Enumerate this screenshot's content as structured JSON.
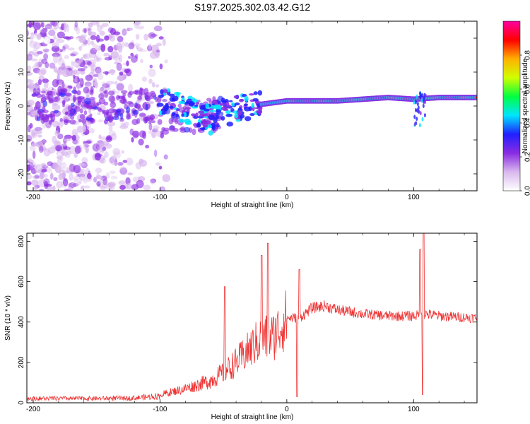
{
  "chart_data": [
    {
      "type": "heatmap",
      "title": "S197.2025.302.03.42.G12",
      "xlabel": "Height of straight line (km)",
      "ylabel": "Frequency (Hz)",
      "xlim": [
        -205,
        150
      ],
      "ylim": [
        -25,
        25
      ],
      "xticks": [
        -200,
        -100,
        0,
        100
      ],
      "xtick_labels": [
        "-200",
        "-100",
        "0",
        "100"
      ],
      "yticks": [
        -20,
        -10,
        0,
        10,
        20
      ],
      "ytick_labels": [
        "-20",
        "-10",
        "0",
        "10",
        "20"
      ],
      "colorbar": {
        "label": "Normalized spectral amplitude",
        "ticks": [
          0.0,
          0.2,
          0.4,
          0.6,
          0.8
        ],
        "tick_labels": [
          "0.0",
          "0.2",
          "0.4",
          "0.6",
          "0.8"
        ],
        "range": [
          0,
          1
        ],
        "colors": [
          "#ffffff",
          "#d9b8ee",
          "#8a2be2",
          "#2020ff",
          "#00e5ff",
          "#00ff40",
          "#d0ff00",
          "#ffb000",
          "#ff0000",
          "#ff00a0"
        ]
      },
      "ridge": {
        "description_points_x_km": [
          -60,
          -40,
          -20,
          0,
          20,
          40,
          60,
          80,
          100,
          120,
          150
        ],
        "frequency_hz": [
          -3,
          -1,
          0.5,
          1.5,
          1.5,
          1.5,
          2,
          2.5,
          2,
          2.5,
          2.5
        ]
      }
    },
    {
      "type": "line",
      "xlabel": "Height of straight line (km)",
      "ylabel": "SNR (10 * v/v)",
      "xlim": [
        -205,
        150
      ],
      "ylim": [
        0,
        840
      ],
      "xticks": [
        -200,
        -100,
        0,
        100
      ],
      "xtick_labels": [
        "-200",
        "-100",
        "0",
        "100"
      ],
      "yticks": [
        0,
        200,
        400,
        600,
        800
      ],
      "ytick_labels": [
        "0",
        "200",
        "400",
        "600",
        "800"
      ],
      "series": [
        {
          "name": "SNR",
          "color": "#ee3333",
          "envelope_x": [
            -205,
            -150,
            -120,
            -100,
            -80,
            -60,
            -50,
            -40,
            -30,
            -20,
            -10,
            0,
            10,
            20,
            30,
            40,
            60,
            80,
            100,
            110,
            120,
            150
          ],
          "envelope_y": [
            25,
            25,
            28,
            40,
            70,
            110,
            150,
            200,
            260,
            320,
            330,
            420,
            420,
            470,
            480,
            460,
            440,
            430,
            430,
            440,
            430,
            420
          ],
          "spikes": [
            {
              "x": -49,
              "y": 575
            },
            {
              "x": -20,
              "y": 730
            },
            {
              "x": -15,
              "y": 790
            },
            {
              "x": 10,
              "y": 660
            },
            {
              "x": 8,
              "y": 30
            },
            {
              "x": 105,
              "y": 760
            },
            {
              "x": 108,
              "y": 840
            },
            {
              "x": 107,
              "y": 40
            }
          ]
        }
      ]
    }
  ]
}
